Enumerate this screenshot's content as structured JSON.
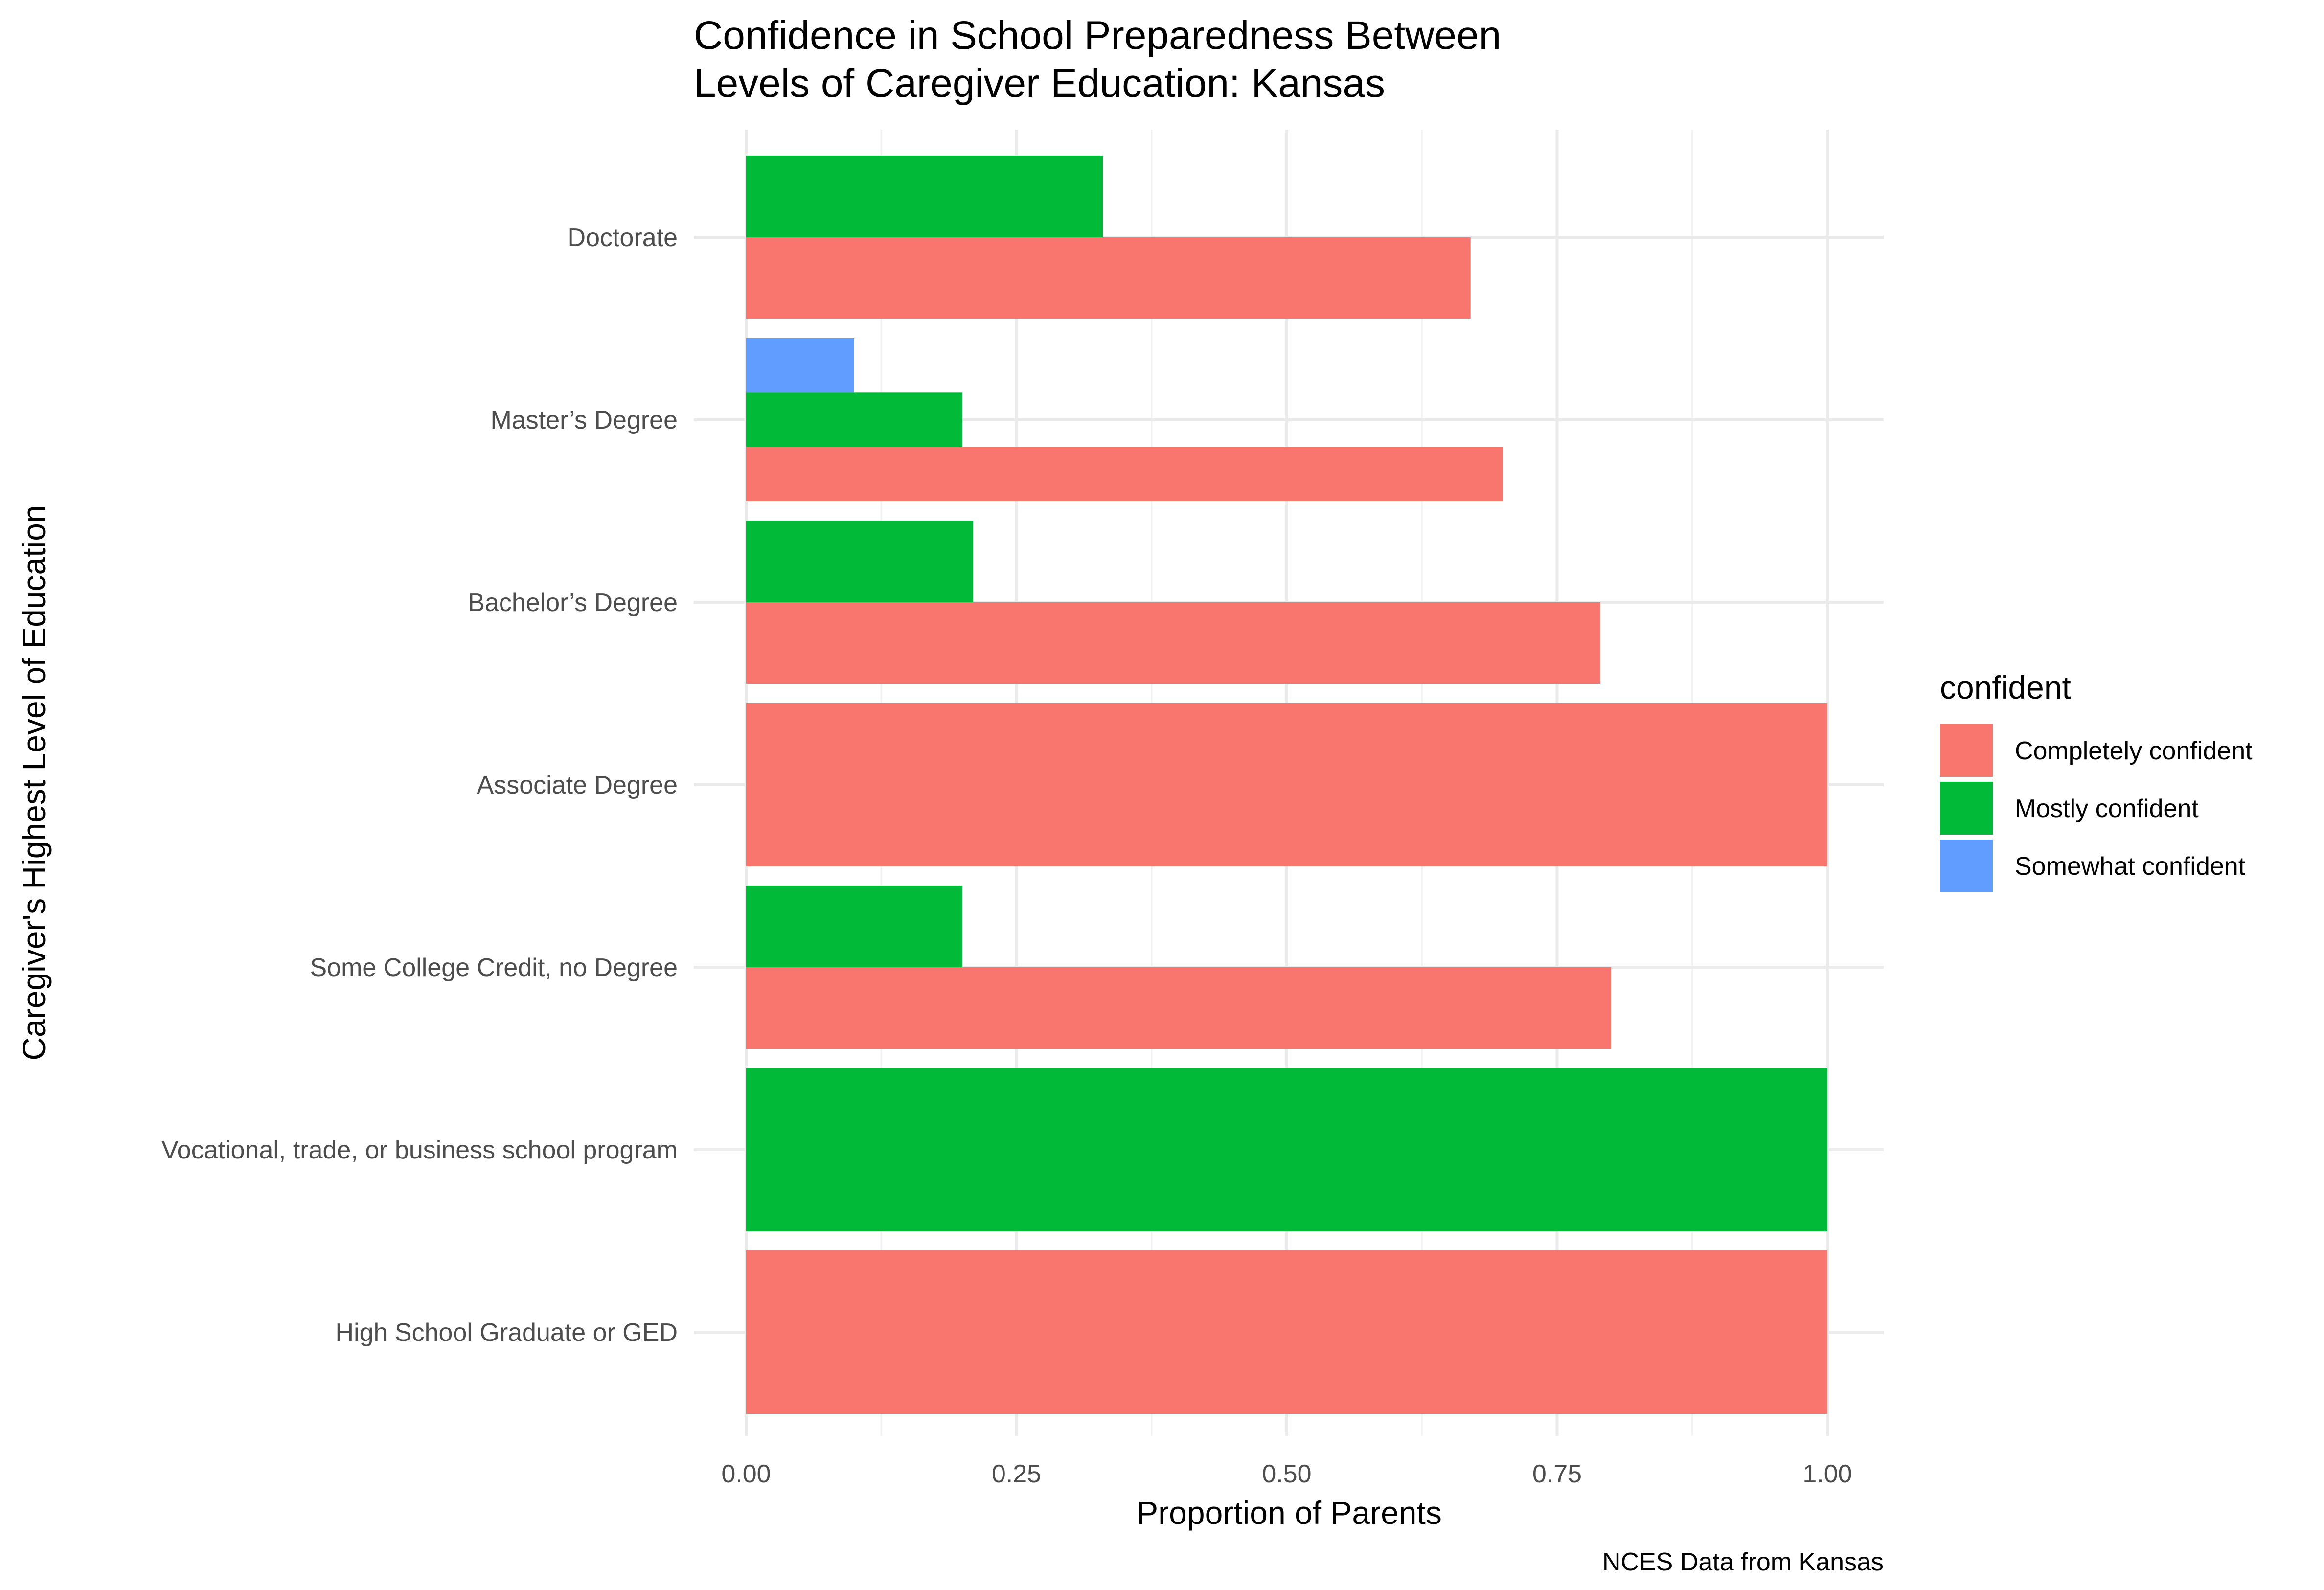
{
  "chart_data": {
    "type": "bar",
    "orientation": "horizontal",
    "position": "dodge",
    "title": "Confidence in School Preparedness Between",
    "title_line2": "Levels of Caregiver Education: Kansas",
    "xlabel": "Proportion of Parents",
    "ylabel": "Caregiver's Highest Level of Education",
    "caption": "NCES Data from Kansas",
    "xlim": [
      0,
      1
    ],
    "x_ticks": [
      "0.00",
      "0.25",
      "0.50",
      "0.75",
      "1.00"
    ],
    "grid": true,
    "legend": {
      "title": "confident",
      "position": "right",
      "entries": [
        {
          "name": "Completely confident",
          "color": "#F8766D"
        },
        {
          "name": "Mostly confident",
          "color": "#00BA38"
        },
        {
          "name": "Somewhat confident",
          "color": "#619CFF"
        }
      ]
    },
    "categories": [
      "Doctorate",
      "Master’s Degree",
      "Bachelor’s Degree",
      "Associate Degree",
      "Some College Credit, no Degree",
      "Vocational, trade, or business school program",
      "High School Graduate or GED"
    ],
    "series": [
      {
        "name": "Completely confident",
        "color": "#F8766D",
        "values": [
          0.67,
          0.7,
          0.79,
          1.0,
          0.8,
          null,
          1.0
        ]
      },
      {
        "name": "Mostly confident",
        "color": "#00BA38",
        "values": [
          0.33,
          0.2,
          0.21,
          null,
          0.2,
          1.0,
          null
        ]
      },
      {
        "name": "Somewhat confident",
        "color": "#619CFF",
        "values": [
          null,
          0.1,
          null,
          null,
          null,
          null,
          null
        ]
      }
    ]
  }
}
